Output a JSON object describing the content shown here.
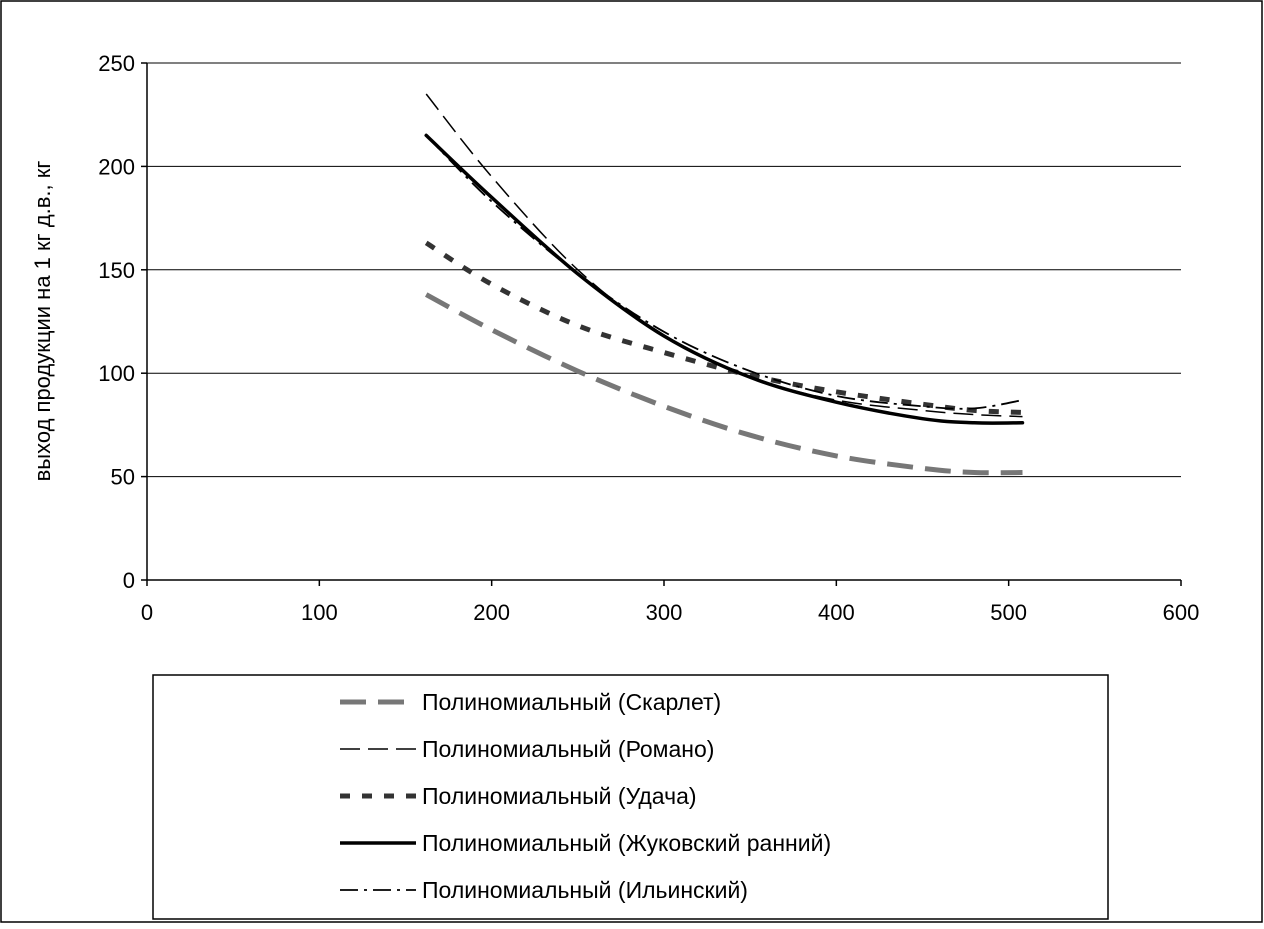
{
  "chart_data": {
    "type": "line",
    "title": "",
    "xlabel": "",
    "ylabel": "выход продукции на 1 кг д.в., кг",
    "xlim": [
      0,
      600
    ],
    "ylim": [
      0,
      250
    ],
    "xticks": [
      "0",
      "100",
      "200",
      "300",
      "400",
      "500",
      "600"
    ],
    "yticks": [
      "0",
      "50",
      "100",
      "150",
      "200",
      "250"
    ],
    "grid": "horizontal",
    "legend_position": "bottom",
    "series": [
      {
        "name": "Полиномиальный (Скарлет)",
        "style": "long-dash-thick",
        "color": "#777777",
        "x": [
          162,
          200,
          250,
          300,
          350,
          400,
          450,
          480,
          508
        ],
        "y": [
          138,
          121,
          101,
          84,
          70,
          60,
          54,
          52,
          52
        ]
      },
      {
        "name": "Полиномиальный (Романо)",
        "style": "dash-thin",
        "color": "#000000",
        "x": [
          162,
          200,
          250,
          300,
          350,
          400,
          450,
          480,
          508
        ],
        "y": [
          235,
          195,
          150,
          118,
          98,
          87,
          82,
          80,
          79
        ]
      },
      {
        "name": "Полиномиальный (Удача)",
        "style": "short-dash-thick",
        "color": "#333333",
        "x": [
          162,
          200,
          250,
          300,
          350,
          400,
          450,
          480,
          508
        ],
        "y": [
          163,
          143,
          123,
          110,
          99,
          91,
          85,
          82,
          81
        ]
      },
      {
        "name": "Полиномиальный (Жуковский ранний)",
        "style": "solid-thick",
        "color": "#000000",
        "x": [
          162,
          200,
          250,
          300,
          350,
          400,
          450,
          480,
          508
        ],
        "y": [
          215,
          185,
          148,
          118,
          98,
          86,
          78,
          76,
          76
        ]
      },
      {
        "name": "Полиномиальный (Ильинский)",
        "style": "dash-dot-thin",
        "color": "#000000",
        "x": [
          162,
          200,
          250,
          300,
          350,
          400,
          450,
          480,
          508
        ],
        "y": [
          215,
          183,
          148,
          120,
          101,
          89,
          84,
          83,
          87
        ]
      }
    ]
  }
}
